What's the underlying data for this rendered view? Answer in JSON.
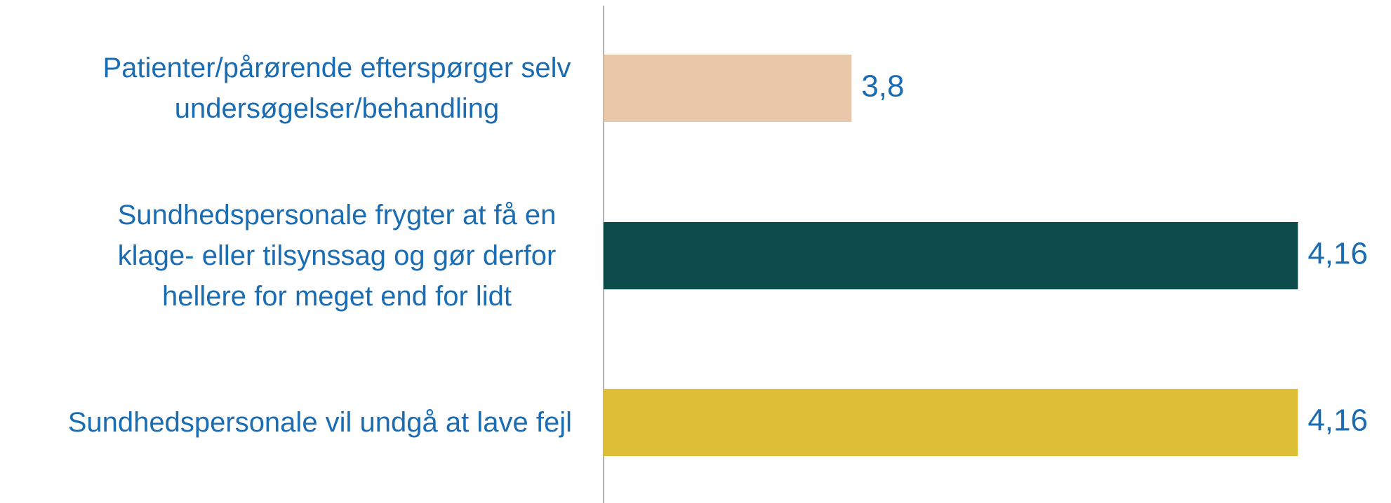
{
  "chart_data": {
    "type": "barh",
    "categories": [
      "Patienter/pårørende efterspørger selv undersøgelser/behandling",
      "Sundhedspersonale frygter at få en klage- eller tilsynssag og gør derfor hellere for meget end for lidt",
      "Sundhedspersonale vil undgå at lave fejl"
    ],
    "values": [
      3.8,
      4.16,
      4.16
    ],
    "value_labels": [
      "3,8",
      "4,16",
      "4,16"
    ],
    "colors": [
      "#e8c8a8",
      "#0d4b4b",
      "#dfbe38"
    ],
    "xlim": [
      3.6,
      4.2
    ]
  }
}
